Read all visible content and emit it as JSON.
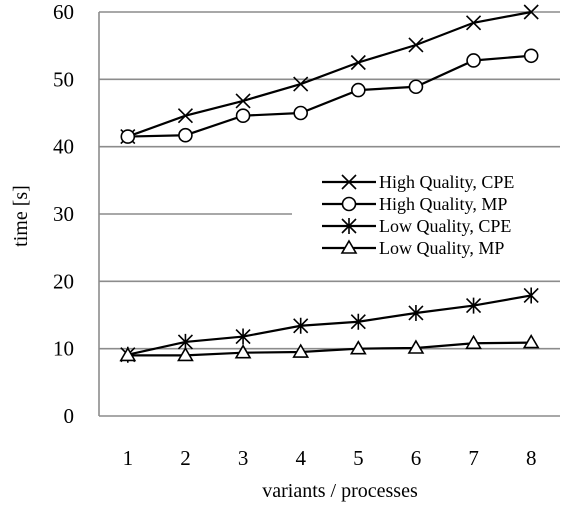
{
  "chart_data": {
    "type": "line",
    "title": "",
    "xlabel": "variants / processes",
    "ylabel": "time [s]",
    "categories": [
      "1",
      "2",
      "3",
      "4",
      "5",
      "6",
      "7",
      "8"
    ],
    "ylim": [
      0,
      60
    ],
    "yticks": [
      "0",
      "10",
      "20",
      "30",
      "40",
      "50",
      "60"
    ],
    "grid": "horizontal",
    "legend_position": "right",
    "series": [
      {
        "name": "High Quality, CPE",
        "marker": "x",
        "values": [
          41.5,
          44.6,
          46.8,
          49.3,
          52.5,
          55.1,
          58.4,
          60.0
        ]
      },
      {
        "name": "High Quality, MP",
        "marker": "circle",
        "values": [
          41.5,
          41.7,
          44.6,
          45.0,
          48.4,
          48.9,
          52.8,
          53.5
        ]
      },
      {
        "name": "Low Quality, CPE",
        "marker": "asterisk",
        "values": [
          9.1,
          11.0,
          11.8,
          13.4,
          14.0,
          15.3,
          16.4,
          17.9
        ]
      },
      {
        "name": "Low Quality, MP",
        "marker": "triangle",
        "values": [
          9.0,
          9.0,
          9.4,
          9.5,
          10.0,
          10.1,
          10.8,
          10.9
        ]
      }
    ]
  }
}
